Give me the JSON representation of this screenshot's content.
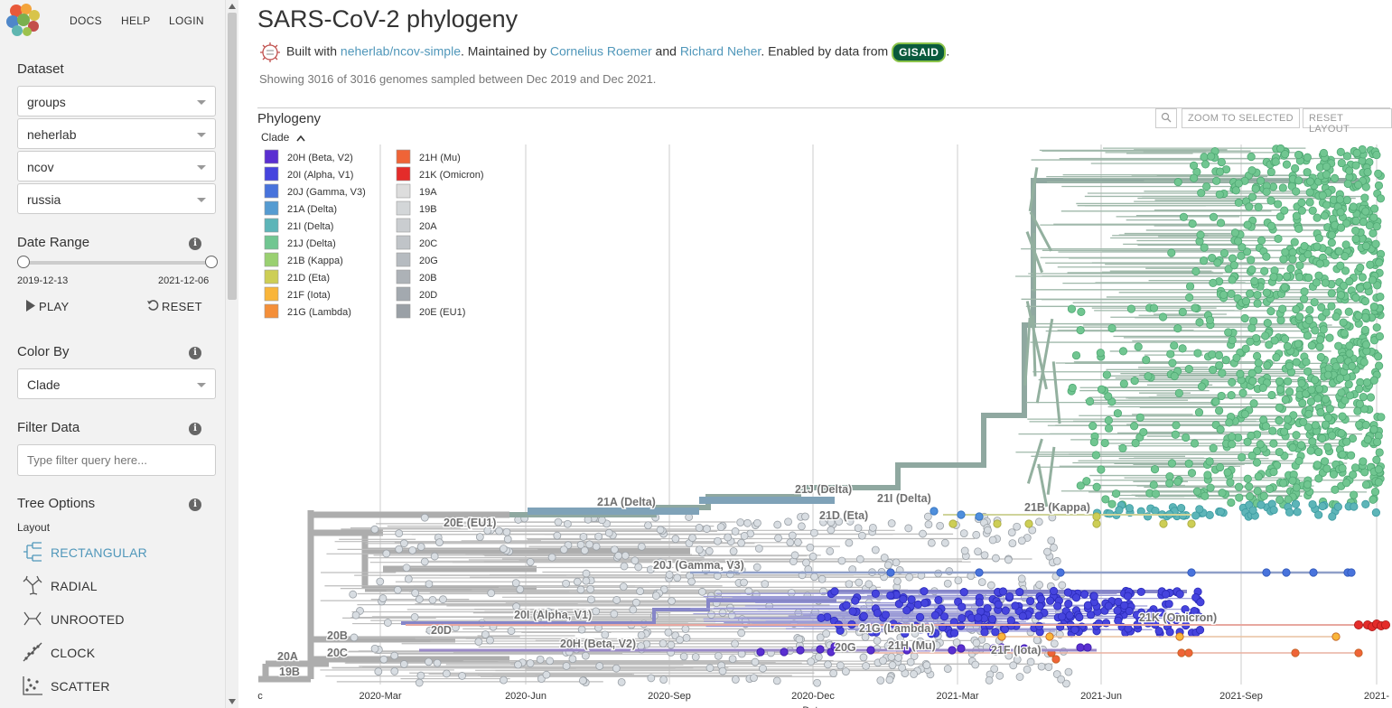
{
  "nav": {
    "docs": "DOCS",
    "help": "HELP",
    "login": "LOGIN"
  },
  "sidebar": {
    "dataset_title": "Dataset",
    "dataset_selects": [
      "groups",
      "neherlab",
      "ncov",
      "russia"
    ],
    "date_range_title": "Date Range",
    "date_start": "2019-12-13",
    "date_end": "2021-12-06",
    "play_label": "PLAY",
    "reset_label": "RESET",
    "color_by_title": "Color By",
    "color_by_value": "Clade",
    "filter_title": "Filter Data",
    "filter_placeholder": "Type filter query here...",
    "tree_options_title": "Tree Options",
    "layout_title": "Layout",
    "layouts": [
      "RECTANGULAR",
      "RADIAL",
      "UNROOTED",
      "CLOCK",
      "SCATTER"
    ]
  },
  "header": {
    "title": "SARS-CoV-2 phylogeny",
    "built_with": "Built with ",
    "repo_link": "neherlab/ncov-simple",
    "maintained_by": ". Maintained by ",
    "maintainer1": "Cornelius Roemer",
    "and": " and ",
    "maintainer2": "Richard Neher",
    "enabled_by": ". Enabled by data from ",
    "gisaid": "GISAID",
    "period": ".",
    "showing": "Showing 3016 of 3016 genomes sampled between Dec 2019 and Dec 2021."
  },
  "panel": {
    "title": "Phylogeny",
    "legend_toggle": "Clade",
    "zoom_to_selected": "ZOOM TO SELECTED",
    "reset_layout": "RESET LAYOUT"
  },
  "colors": {
    "accent": "#5097BA",
    "branch_default": "#aaaaaa"
  },
  "legend": [
    {
      "label": "20H (Beta, V2)",
      "color": "#5A2FD1"
    },
    {
      "label": "20I (Alpha, V1)",
      "color": "#4644DE"
    },
    {
      "label": "20J (Gamma, V3)",
      "color": "#4873DC"
    },
    {
      "label": "21A (Delta)",
      "color": "#559BD1"
    },
    {
      "label": "21I (Delta)",
      "color": "#5DB5B8"
    },
    {
      "label": "21J (Delta)",
      "color": "#71C691"
    },
    {
      "label": "21B (Kappa)",
      "color": "#9AD071"
    },
    {
      "label": "21D (Eta)",
      "color": "#CDCE55"
    },
    {
      "label": "21F (Iota)",
      "color": "#F9B53A"
    },
    {
      "label": "21G (Lambda)",
      "color": "#F48F39"
    },
    {
      "label": "21H (Mu)",
      "color": "#EF6437"
    },
    {
      "label": "21K (Omicron)",
      "color": "#E42C2A"
    },
    {
      "label": "19A",
      "color": "#DDDDDD"
    },
    {
      "label": "19B",
      "color": "#D3D6D8"
    },
    {
      "label": "20A",
      "color": "#CACDD0"
    },
    {
      "label": "20C",
      "color": "#C0C4C8"
    },
    {
      "label": "20G",
      "color": "#B6BBC0"
    },
    {
      "label": "20B",
      "color": "#ADB2B7"
    },
    {
      "label": "20D",
      "color": "#A3A9AF"
    },
    {
      "label": "20E (EU1)",
      "color": "#9AA0A6"
    }
  ],
  "axis": {
    "ticks": [
      "c",
      "2020-Mar",
      "2020-Jun",
      "2020-Sep",
      "2020-Dec",
      "2021-Mar",
      "2021-Jun",
      "2021-Sep",
      "2021-"
    ],
    "label": "Date"
  },
  "clade_labels": [
    {
      "text": "21A (Delta)"
    },
    {
      "text": "21J (Delta)"
    },
    {
      "text": "21I (Delta)"
    },
    {
      "text": "20E (EU1)"
    },
    {
      "text": "21D (Eta)"
    },
    {
      "text": "21B (Kappa)"
    },
    {
      "text": "20J (Gamma, V3)"
    },
    {
      "text": "20I (Alpha, V1)"
    },
    {
      "text": "21K (Omicron)"
    },
    {
      "text": "21G (Lambda)"
    },
    {
      "text": "20H (Beta, V2)"
    },
    {
      "text": "20G"
    },
    {
      "text": "21H (Mu)"
    },
    {
      "text": "21F (Iota)"
    },
    {
      "text": "20B"
    },
    {
      "text": "20D"
    },
    {
      "text": "20C"
    },
    {
      "text": "20A"
    },
    {
      "text": "19B"
    }
  ]
}
